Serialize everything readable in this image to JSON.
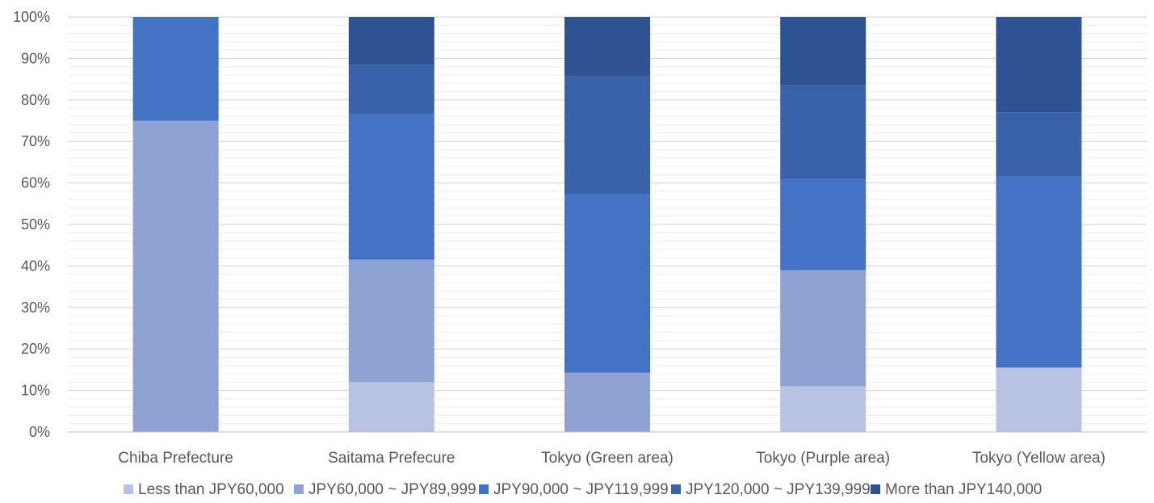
{
  "chart_data": {
    "type": "bar",
    "stacked": "percent",
    "categories": [
      "Chiba Prefecture",
      "Saitama Prefecure",
      "Tokyo (Green area)",
      "Tokyo (Purple area)",
      "Tokyo (Yellow area)"
    ],
    "series": [
      {
        "name": "Less than JPY60,000",
        "color": "#b8c2e2",
        "values": [
          0,
          12,
          0,
          11,
          15.5
        ]
      },
      {
        "name": "JPY60,000 ~ JPY89,999",
        "color": "#8fa2d4",
        "values": [
          75,
          29.5,
          14.3,
          28,
          0
        ]
      },
      {
        "name": "JPY90,000 ~ JPY119,999",
        "color": "#4472c4",
        "values": [
          25,
          35,
          43,
          22,
          46
        ]
      },
      {
        "name": "JPY120,000 ~ JPY139,999",
        "color": "#3a62ab",
        "values": [
          0,
          12,
          28.5,
          22.5,
          15.5
        ]
      },
      {
        "name": "More than JPY140,000",
        "color": "#2f5293",
        "values": [
          0,
          11.5,
          14.2,
          16.5,
          23
        ]
      }
    ],
    "ylim": [
      0,
      100
    ],
    "yticks": [
      "0%",
      "10%",
      "20%",
      "30%",
      "40%",
      "50%",
      "60%",
      "70%",
      "80%",
      "90%",
      "100%"
    ],
    "title": "",
    "xlabel": "",
    "ylabel": "",
    "grid": true,
    "legend": "bottom"
  }
}
